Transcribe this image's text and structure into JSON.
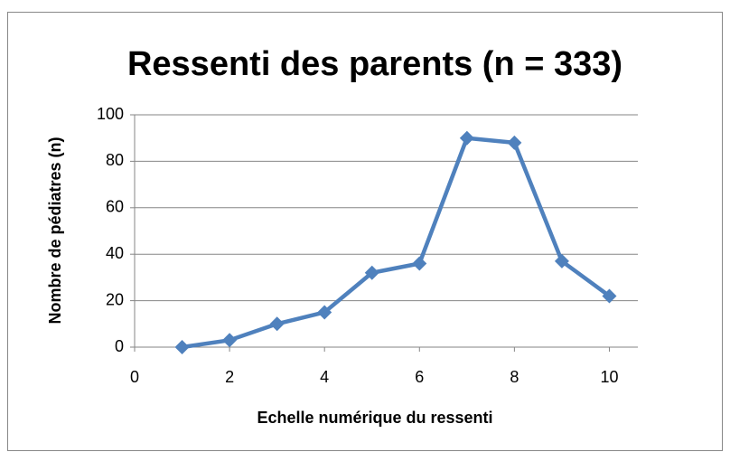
{
  "chart_data": {
    "type": "line",
    "title": "Ressenti des parents (n = 333)",
    "x_label": "Echelle numérique du ressenti",
    "y_label": "Nombre de pédiatres (n)",
    "x": [
      1,
      2,
      3,
      4,
      5,
      6,
      7,
      8,
      9,
      10
    ],
    "series": [
      {
        "name": "Ressenti",
        "color": "#4f81bd",
        "values": [
          0,
          3,
          10,
          15,
          32,
          36,
          90,
          88,
          37,
          22
        ]
      }
    ],
    "xlim": [
      0,
      10.6
    ],
    "xticks": [
      0,
      2,
      4,
      6,
      8,
      10
    ],
    "ylim": [
      0,
      100
    ],
    "yticks": [
      0,
      20,
      40,
      60,
      80,
      100
    ],
    "grid": true,
    "legend": false
  }
}
